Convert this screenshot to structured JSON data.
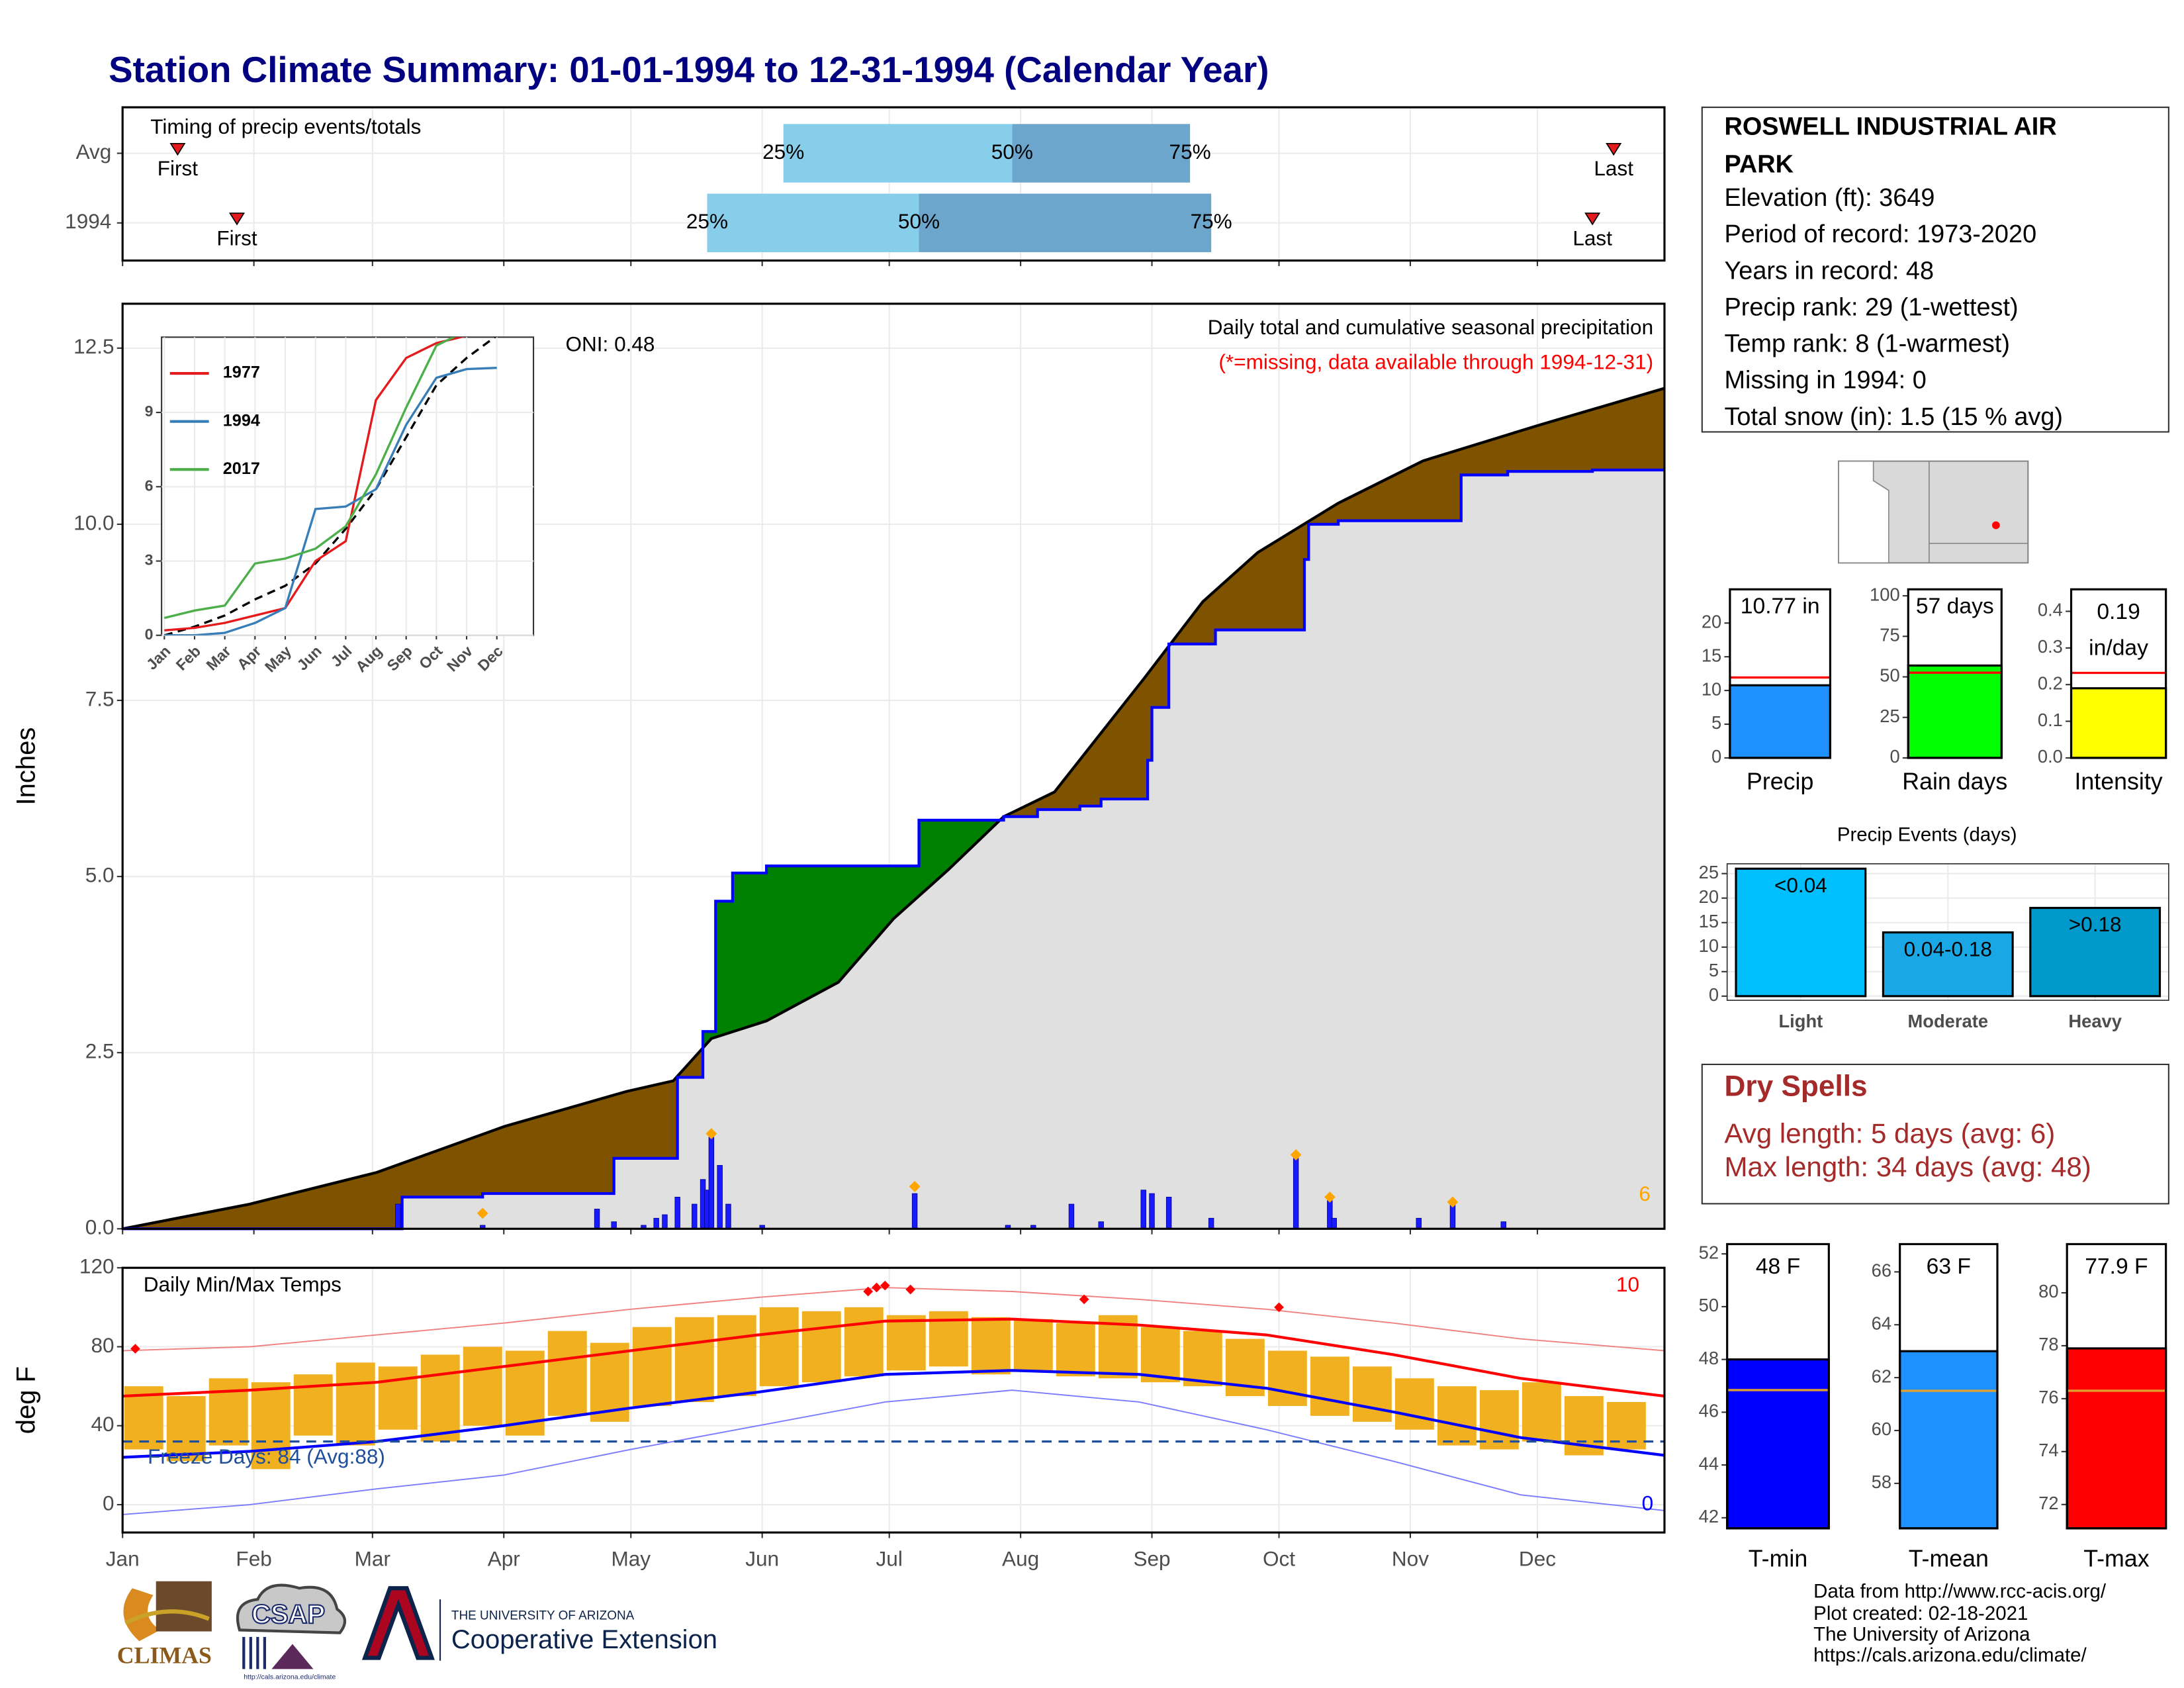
{
  "title": "Station Climate Summary: 01-01-1994 to 12-31-1994 (Calendar Year)",
  "chart_data": [
    {
      "type": "timing",
      "title": "Timing of precip events/totals",
      "rows": [
        {
          "label": "Avg",
          "first": 13,
          "p25": 156,
          "p50": 210,
          "p75": 252,
          "last": 352
        },
        {
          "label": "1994",
          "first": 27,
          "p25": 138,
          "p50": 188,
          "p75": 257,
          "last": 347
        }
      ],
      "first_label": "First",
      "last_label": "Last",
      "quantile_labels": [
        "25%",
        "50%",
        "75%"
      ],
      "xlim": [
        0,
        364
      ],
      "xticks": [
        0,
        31,
        59,
        90,
        120,
        151,
        181,
        212,
        243,
        273,
        304,
        334
      ],
      "colors": {
        "lower": "#87ceeb",
        "upper": "#6ca6cd",
        "marker": "#e41a1c"
      }
    },
    {
      "type": "cumulative",
      "title": "Daily total and cumulative seasonal precipitation",
      "subtitle": "(*=missing, data available through 1994-12-31)",
      "ylabel": "Inches",
      "annotation": "ONI: 0.48",
      "count_label": "6",
      "xlim": [
        0,
        364
      ],
      "xticks": [
        0,
        31,
        59,
        90,
        120,
        151,
        181,
        212,
        243,
        273,
        304,
        334
      ],
      "ylim": [
        0,
        13.13
      ],
      "yticks": [
        {
          "value": 0,
          "label": "0.0"
        },
        2.5,
        {
          "value": 5,
          "label": "5.0"
        },
        7.5,
        {
          "value": 10,
          "label": "10.0"
        },
        12.5
      ],
      "grid": true,
      "average": {
        "x": [
          0,
          30,
          60,
          90,
          119,
          130,
          139,
          152,
          169,
          182,
          195,
          208,
          220,
          241,
          255,
          268,
          287,
          307,
          334,
          364
        ],
        "values": [
          0,
          0.35,
          0.8,
          1.45,
          1.95,
          2.1,
          2.7,
          2.95,
          3.5,
          4.4,
          5.1,
          5.85,
          6.2,
          7.8,
          8.9,
          9.6,
          10.3,
          10.9,
          11.4,
          11.93
        ]
      },
      "observed": {
        "x": [
          0,
          66,
          85,
          116,
          131,
          137,
          140,
          144,
          152,
          188,
          208,
          216,
          226,
          231,
          242,
          243,
          247,
          258,
          279,
          280,
          287,
          316,
          327,
          347,
          364
        ],
        "values": [
          0,
          0.45,
          0.5,
          1.0,
          2.15,
          2.8,
          4.65,
          5.05,
          5.15,
          5.8,
          5.85,
          5.95,
          6.0,
          6.1,
          6.65,
          7.4,
          8.3,
          8.5,
          9.5,
          10.0,
          10.05,
          10.7,
          10.75,
          10.77,
          10.77
        ]
      },
      "daily": {
        "x": [
          65,
          85,
          112,
          116,
          123,
          126,
          128,
          131,
          135,
          137,
          138,
          139,
          141,
          143,
          151,
          187,
          209,
          215,
          224,
          231,
          241,
          243,
          247,
          257,
          277,
          285,
          286,
          306,
          314,
          326
        ],
        "values": [
          0.35,
          0.05,
          0.28,
          0.1,
          0.05,
          0.15,
          0.2,
          0.45,
          0.35,
          0.7,
          0.55,
          1.3,
          0.9,
          0.35,
          0.05,
          0.5,
          0.05,
          0.05,
          0.35,
          0.1,
          0.55,
          0.5,
          0.45,
          0.15,
          1.0,
          0.4,
          0.15,
          0.15,
          0.35,
          0.1
        ]
      },
      "events": {
        "x": [
          85,
          139,
          187,
          277,
          285,
          314
        ],
        "values": [
          0.22,
          1.35,
          0.6,
          1.05,
          0.45,
          0.38
        ]
      },
      "colors": {
        "above": "#008000",
        "below": "#7f5200",
        "base": "#e0e0e0",
        "average": "#000000",
        "observed": "#0000ff",
        "daily": "#1a1aff",
        "event": "#ffa500"
      }
    },
    {
      "type": "line",
      "categories": [
        "Jan",
        "Feb",
        "Mar",
        "Apr",
        "May",
        "Jun",
        "Jul",
        "Aug",
        "Sep",
        "Oct",
        "Nov",
        "Dec"
      ],
      "series": [
        {
          "name": "1977",
          "color": "#e41a1c",
          "values": [
            0.2,
            0.3,
            0.5,
            0.8,
            1.1,
            3.0,
            3.8,
            9.5,
            11.2,
            11.8,
            12.1,
            12.2
          ]
        },
        {
          "name": "1994",
          "color": "#377eb8",
          "values": [
            0,
            0,
            0.1,
            0.5,
            1.1,
            5.1,
            5.2,
            5.9,
            8.5,
            10.4,
            10.75,
            10.8
          ]
        },
        {
          "name": "2017",
          "color": "#4daf4a",
          "values": [
            0.7,
            1.0,
            1.2,
            2.9,
            3.1,
            3.5,
            4.4,
            6.5,
            9.2,
            11.7,
            12.3,
            12.35
          ]
        }
      ],
      "average": {
        "color": "#000000",
        "values": [
          0,
          0.35,
          0.8,
          1.45,
          2.0,
          2.9,
          4.3,
          5.9,
          8.0,
          10.1,
          11.2,
          12.1
        ]
      },
      "ylim": [
        0,
        12.04
      ],
      "yticks": [
        0,
        3,
        6,
        9
      ],
      "grid": true
    },
    {
      "type": "temperature",
      "title": "Daily Min/Max Temps",
      "ylabel": "deg F",
      "freeze_label": "Freeze Days: 84 (Avg:88)",
      "freeze_threshold": 32,
      "record_high_count": "10",
      "record_low_count": "0",
      "xlim": [
        0,
        364
      ],
      "xticks": [
        {
          "value": 0,
          "label": "Jan"
        },
        {
          "value": 31,
          "label": "Feb"
        },
        {
          "value": 59,
          "label": "Mar"
        },
        {
          "value": 90,
          "label": "Apr"
        },
        {
          "value": 120,
          "label": "May"
        },
        {
          "value": 151,
          "label": "Jun"
        },
        {
          "value": 181,
          "label": "Jul"
        },
        {
          "value": 212,
          "label": "Aug"
        },
        {
          "value": 243,
          "label": "Sep"
        },
        {
          "value": 273,
          "label": "Oct"
        },
        {
          "value": 304,
          "label": "Nov"
        },
        {
          "value": 334,
          "label": "Dec"
        }
      ],
      "ylim": [
        -14.1,
        120
      ],
      "yticks": [
        0,
        40,
        80,
        120
      ],
      "grid": true,
      "normals": {
        "x": [
          0,
          30,
          60,
          90,
          120,
          150,
          180,
          210,
          240,
          270,
          300,
          330,
          364
        ],
        "high": [
          55,
          58,
          62,
          70,
          78,
          86,
          93,
          94,
          91,
          86,
          76,
          64,
          55
        ],
        "low": [
          24,
          27,
          32,
          40,
          49,
          57,
          66,
          68,
          66,
          59,
          47,
          34,
          25
        ],
        "record_high": [
          78,
          80,
          86,
          92,
          99,
          105,
          110,
          108,
          104,
          99,
          92,
          84,
          78
        ],
        "record_low": [
          -5,
          0,
          8,
          15,
          28,
          40,
          52,
          58,
          52,
          38,
          22,
          5,
          -3
        ]
      },
      "observed": {
        "x": [
          5,
          15,
          25,
          35,
          45,
          55,
          65,
          75,
          85,
          95,
          105,
          115,
          125,
          135,
          145,
          155,
          165,
          175,
          185,
          195,
          205,
          215,
          225,
          235,
          245,
          255,
          265,
          275,
          285,
          295,
          305,
          315,
          325,
          335,
          345,
          355
        ],
        "low": [
          28,
          22,
          30,
          18,
          35,
          30,
          38,
          32,
          40,
          35,
          45,
          42,
          50,
          52,
          55,
          60,
          62,
          65,
          68,
          70,
          66,
          68,
          65,
          64,
          62,
          60,
          55,
          50,
          45,
          42,
          38,
          30,
          28,
          32,
          25,
          28
        ],
        "high": [
          60,
          55,
          64,
          62,
          66,
          72,
          70,
          76,
          80,
          78,
          88,
          82,
          90,
          95,
          96,
          100,
          98,
          100,
          96,
          98,
          95,
          94,
          92,
          96,
          90,
          88,
          84,
          78,
          75,
          70,
          64,
          60,
          58,
          62,
          55,
          52
        ]
      },
      "records": {
        "x": [
          3,
          176,
          178,
          180,
          186,
          227,
          273
        ],
        "values": [
          79,
          108,
          110,
          111,
          109,
          104,
          100
        ]
      },
      "colors": {
        "observed": "#f0b020",
        "high": "#ff0000",
        "low": "#0000ff",
        "record_high": "#f08080",
        "record_low": "#7b7bff",
        "freeze": "#1f4e9a",
        "record": "#ff0000"
      }
    },
    {
      "type": "bar",
      "categories": [
        "Precip"
      ],
      "values": [
        10.77
      ],
      "value_labels": [
        "10.77 in"
      ],
      "avg": 11.93,
      "color": "#1e90ff",
      "ylim": [
        0,
        25
      ],
      "yticks": [
        0,
        5,
        10,
        15,
        20
      ]
    },
    {
      "type": "bar",
      "categories": [
        "Rain days"
      ],
      "values": [
        57
      ],
      "value_labels": [
        "57 days"
      ],
      "avg": 52.6,
      "color": "#00ff00",
      "ylim": [
        0,
        104
      ],
      "yticks": [
        0,
        25,
        50,
        75,
        100
      ]
    },
    {
      "type": "bar",
      "categories": [
        "Intensity"
      ],
      "values": [
        0.19
      ],
      "value_labels": [
        "0.19"
      ],
      "unit_label": "in/day",
      "avg": 0.232,
      "color": "#ffff00",
      "ylim": [
        0,
        0.46
      ],
      "yticks": [
        {
          "value": 0,
          "label": "0.0"
        },
        0.1,
        0.2,
        0.3,
        0.4
      ]
    },
    {
      "type": "events",
      "title": "Precip Events (days)",
      "categories": [
        "Light",
        "Moderate",
        "Heavy"
      ],
      "values": [
        26,
        13,
        18
      ],
      "value_labels": [
        "<0.04",
        "0.04-0.18",
        ">0.18"
      ],
      "colors": [
        "#00bfff",
        "#1aa7e6",
        "#0099cc"
      ],
      "ylim": [
        -0.85,
        27
      ],
      "yticks": [
        0,
        5,
        10,
        15,
        20,
        25
      ],
      "grid": true
    },
    {
      "type": "bar",
      "categories": [
        "T-min"
      ],
      "values": [
        48
      ],
      "value_labels": [
        "48 F"
      ],
      "avg": 46.84,
      "color": "#0000ff",
      "ylim": [
        41.6,
        52.37
      ],
      "yticks": [
        42,
        44,
        46,
        48,
        50,
        52
      ]
    },
    {
      "type": "bar",
      "categories": [
        "T-mean"
      ],
      "values": [
        63
      ],
      "value_labels": [
        "63 F"
      ],
      "avg": 61.5,
      "color": "#1e90ff",
      "ylim": [
        56.3,
        67.05
      ],
      "yticks": [
        58,
        60,
        62,
        64,
        66
      ]
    },
    {
      "type": "bar",
      "categories": [
        "T-max"
      ],
      "values": [
        77.9
      ],
      "value_labels": [
        "77.9 F"
      ],
      "avg": 76.3,
      "color": "#ff0000",
      "ylim": [
        71.1,
        81.84
      ],
      "yticks": [
        72,
        74,
        76,
        78,
        80
      ]
    }
  ],
  "station": {
    "name_lines": [
      "ROSWELL INDUSTRIAL AIR",
      "PARK"
    ],
    "lines": [
      "Elevation (ft): 3649",
      "Period of record: 1973-2020",
      "Years in record: 48",
      "Precip rank: 29 (1-wettest)",
      "Temp rank: 8 (1-warmest)",
      "Missing in 1994: 0",
      "Total snow (in): 1.5 (15 % avg)"
    ]
  },
  "dry_spells": {
    "title": "Dry Spells",
    "lines": [
      "Avg length: 5 days (avg: 6)",
      "Max length: 34 days (avg: 48)"
    ]
  },
  "footer": [
    "Data from http://www.rcc-acis.org/",
    "Plot created: 02-18-2021",
    "The University of Arizona",
    "https://cals.arizona.edu/climate/"
  ],
  "logos": {
    "climas": "CLIMAS",
    "csap": "CSAP",
    "csap_url": "http://cals.arizona.edu/climate",
    "ua_small": "THE UNIVERSITY OF ARIZONA",
    "ua_large": "Cooperative Extension"
  }
}
